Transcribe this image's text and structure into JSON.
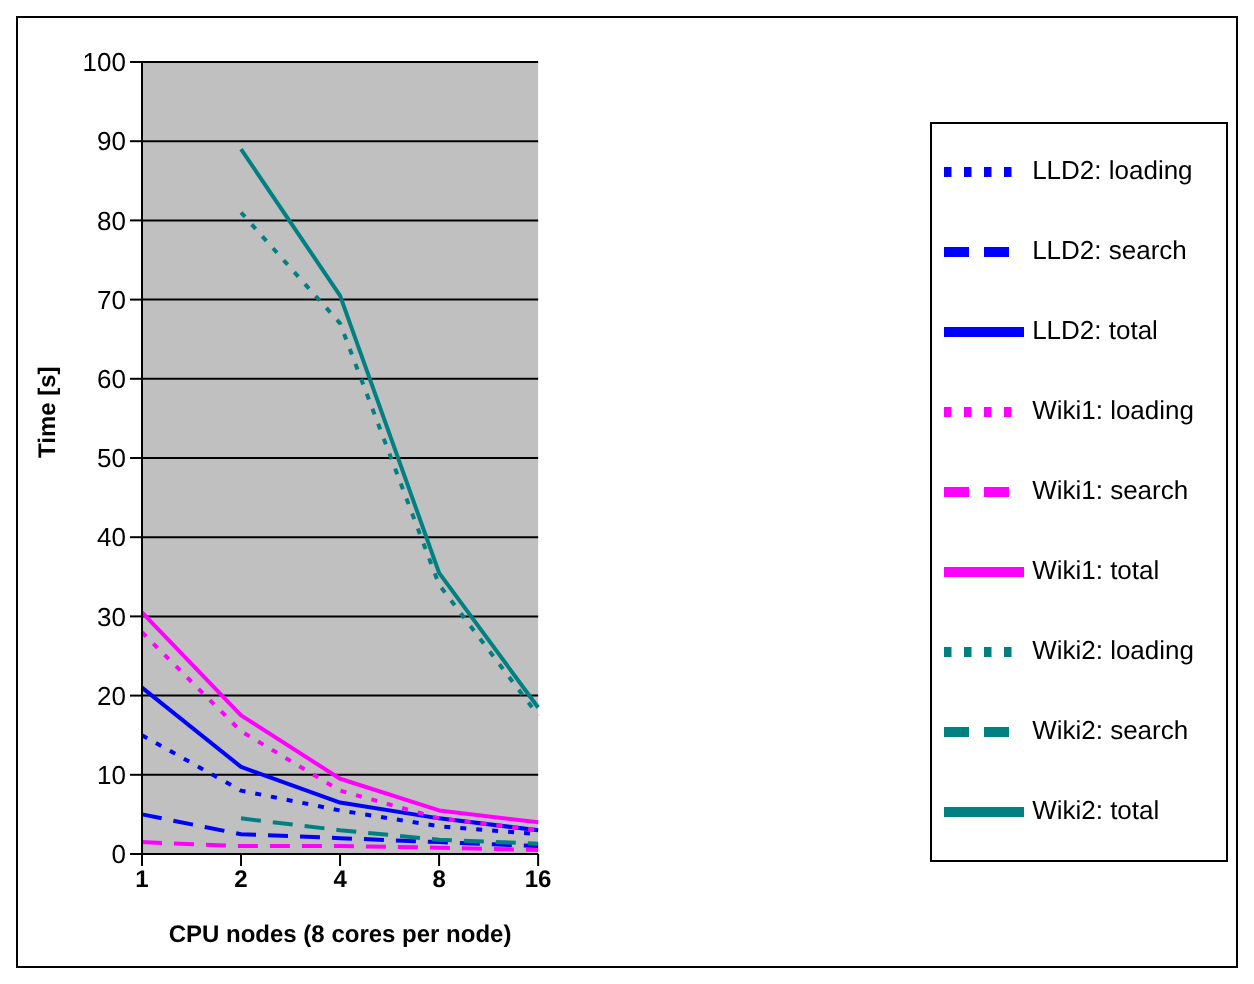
{
  "chart_data": {
    "type": "line",
    "xlabel": "CPU nodes (8 cores per node)",
    "ylabel": "Time [s]",
    "categories": [
      "1",
      "2",
      "4",
      "8",
      "16"
    ],
    "ylim": [
      0,
      100
    ],
    "yticks": [
      0,
      10,
      20,
      30,
      40,
      50,
      60,
      70,
      80,
      90,
      100
    ],
    "grid": "y",
    "legend": "right",
    "marker": "none",
    "series": [
      {
        "name": "LLD2: loading",
        "color": "#0000ff",
        "line_style": "dotted",
        "values": [
          15,
          8,
          5.5,
          3.5,
          2.5
        ]
      },
      {
        "name": "LLD2: search",
        "color": "#0000ff",
        "line_style": "dashed",
        "values": [
          5,
          2.5,
          2,
          1.5,
          1
        ]
      },
      {
        "name": "LLD2: total",
        "color": "#0000ff",
        "line_style": "solid",
        "values": [
          21,
          11,
          6.5,
          4.5,
          3
        ]
      },
      {
        "name": "Wiki1: loading",
        "color": "#ff00ff",
        "line_style": "dotted",
        "values": [
          28,
          15.5,
          8,
          4.5,
          3
        ]
      },
      {
        "name": "Wiki1: search",
        "color": "#ff00ff",
        "line_style": "dashed",
        "values": [
          1.5,
          1,
          1,
          0.8,
          0.5
        ]
      },
      {
        "name": "Wiki1: total",
        "color": "#ff00ff",
        "line_style": "solid",
        "values": [
          30.5,
          17.5,
          9.5,
          5.5,
          4
        ]
      },
      {
        "name": "Wiki2: loading",
        "color": "#008080",
        "line_style": "dotted",
        "values": [
          null,
          81,
          67,
          34,
          17.5
        ]
      },
      {
        "name": "Wiki2: search",
        "color": "#008080",
        "line_style": "dashed",
        "values": [
          null,
          4.5,
          3,
          1.8,
          1.3
        ]
      },
      {
        "name": "Wiki2: total",
        "color": "#008080",
        "line_style": "solid",
        "values": [
          null,
          89,
          70.5,
          35.5,
          18.5
        ]
      }
    ]
  }
}
